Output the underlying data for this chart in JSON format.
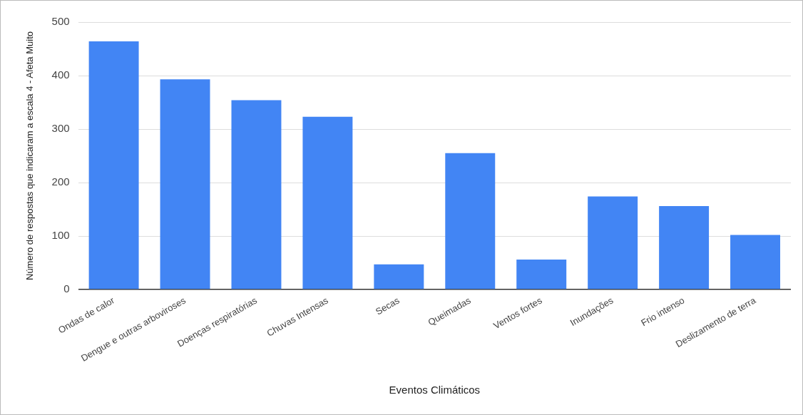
{
  "chart_data": {
    "type": "bar",
    "xlabel": "Eventos Climáticos",
    "ylabel": "Número de respostas que indicaram a escala 4 - Afeta Muito",
    "categories": [
      "Ondas de calor",
      "Dengue e outras arboviroses",
      "Doenças respiratórias",
      "Chuvas Intensas",
      "Secas",
      "Queimadas",
      "Ventos fortes",
      "Inundações",
      "Frio intenso",
      "Deslizamento de terra"
    ],
    "values": [
      464,
      393,
      354,
      323,
      47,
      255,
      56,
      174,
      156,
      102
    ],
    "color": "#4285f4",
    "ylim": [
      0,
      500
    ],
    "yticks": [
      0,
      100,
      200,
      300,
      400,
      500
    ],
    "grid": "y",
    "legend": false
  }
}
